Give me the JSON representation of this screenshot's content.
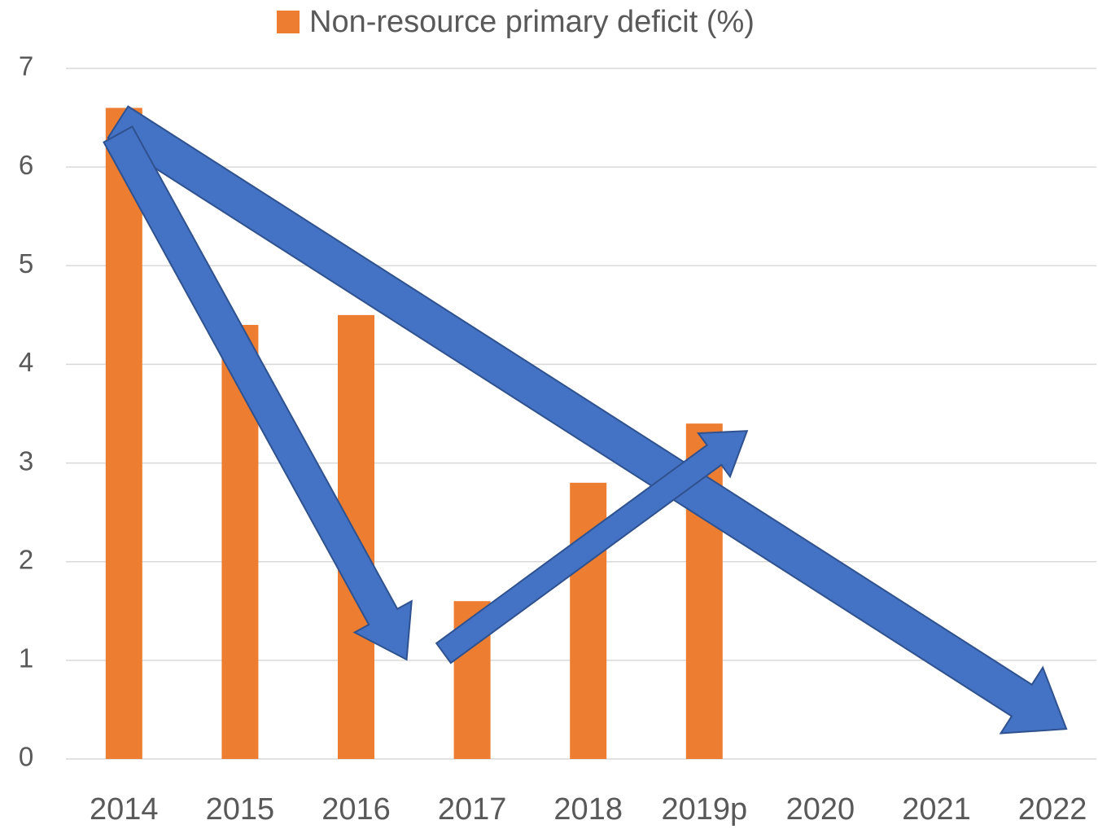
{
  "chart_data": {
    "type": "bar",
    "categories": [
      "2014",
      "2015",
      "2016",
      "2017",
      "2018",
      "2019p",
      "2020",
      "2021",
      "2022"
    ],
    "series": [
      {
        "name": "Non-resource primary deficit (%)",
        "color": "#ed7d31",
        "values": [
          6.6,
          4.4,
          4.5,
          1.6,
          2.8,
          3.4,
          null,
          null,
          null
        ]
      }
    ],
    "ylim": [
      0,
      7
    ],
    "yticks": [
      0,
      1,
      2,
      3,
      4,
      5,
      6,
      7
    ],
    "grid": true,
    "legend": "top"
  }
}
